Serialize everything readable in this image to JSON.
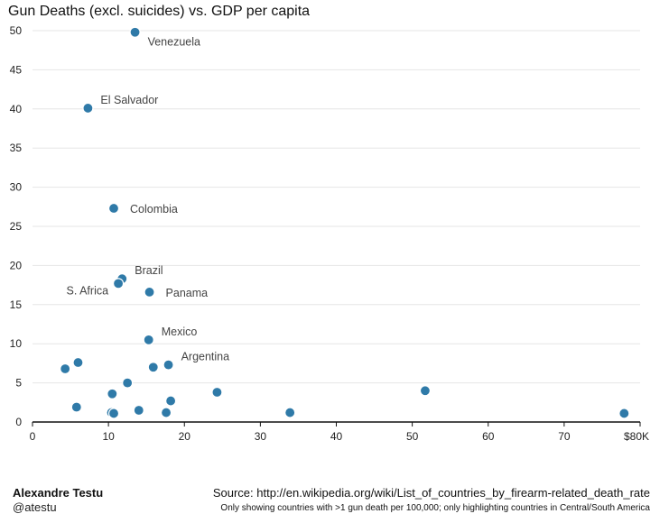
{
  "chart_data": {
    "type": "scatter",
    "title": "Gun Deaths (excl. suicides) vs. GDP per capita",
    "xlabel": "",
    "ylabel": "",
    "xlim": [
      0,
      80
    ],
    "ylim": [
      0,
      50
    ],
    "x_ticks": [
      {
        "value": 0,
        "label": "0"
      },
      {
        "value": 10,
        "label": "10"
      },
      {
        "value": 20,
        "label": "20"
      },
      {
        "value": 30,
        "label": "30"
      },
      {
        "value": 40,
        "label": "40"
      },
      {
        "value": 50,
        "label": "50"
      },
      {
        "value": 60,
        "label": "60"
      },
      {
        "value": 70,
        "label": "70"
      },
      {
        "value": 80,
        "label": "$80K"
      }
    ],
    "y_ticks": [
      {
        "value": 0,
        "label": "0"
      },
      {
        "value": 5,
        "label": "5"
      },
      {
        "value": 10,
        "label": "10"
      },
      {
        "value": 15,
        "label": "15"
      },
      {
        "value": 20,
        "label": "20"
      },
      {
        "value": 25,
        "label": "25"
      },
      {
        "value": 30,
        "label": "30"
      },
      {
        "value": 35,
        "label": "35"
      },
      {
        "value": 40,
        "label": "40"
      },
      {
        "value": 45,
        "label": "45"
      },
      {
        "value": 50,
        "label": "50"
      }
    ],
    "grid": "horizontal",
    "point_color": "#2f7aa8",
    "points": [
      {
        "x": 13.5,
        "y": 49.8,
        "label": "Venezuela",
        "label_pos": "below-right"
      },
      {
        "x": 7.3,
        "y": 40.1,
        "label": "El Salvador",
        "label_pos": "upper-right"
      },
      {
        "x": 10.7,
        "y": 27.3,
        "label": "Colombia",
        "label_pos": "right"
      },
      {
        "x": 11.8,
        "y": 18.3,
        "label": "Brazil",
        "label_pos": "upper-right"
      },
      {
        "x": 11.3,
        "y": 17.7,
        "label": "S. Africa",
        "label_pos": "left"
      },
      {
        "x": 15.4,
        "y": 16.6,
        "label": "Panama",
        "label_pos": "right"
      },
      {
        "x": 15.3,
        "y": 10.5,
        "label": "Mexico",
        "label_pos": "upper-right"
      },
      {
        "x": 17.9,
        "y": 7.3,
        "label": "Argentina",
        "label_pos": "upper-right"
      },
      {
        "x": 4.3,
        "y": 6.8
      },
      {
        "x": 6.0,
        "y": 7.6
      },
      {
        "x": 15.9,
        "y": 7.0
      },
      {
        "x": 12.5,
        "y": 5.0
      },
      {
        "x": 10.5,
        "y": 3.6
      },
      {
        "x": 18.2,
        "y": 2.7
      },
      {
        "x": 24.3,
        "y": 3.8
      },
      {
        "x": 51.7,
        "y": 4.0
      },
      {
        "x": 5.8,
        "y": 1.9
      },
      {
        "x": 10.4,
        "y": 1.2
      },
      {
        "x": 10.7,
        "y": 1.1
      },
      {
        "x": 14.0,
        "y": 1.5
      },
      {
        "x": 17.6,
        "y": 1.2
      },
      {
        "x": 33.9,
        "y": 1.2
      },
      {
        "x": 77.9,
        "y": 1.1
      }
    ]
  },
  "footer": {
    "author": "Alexandre Testu",
    "handle": "@atestu",
    "source": "Source: http://en.wikipedia.org/wiki/List_of_countries_by_firearm-related_death_rate",
    "note": "Only showing countries with >1 gun death per 100,000; only highlighting countries in Central/South America"
  }
}
